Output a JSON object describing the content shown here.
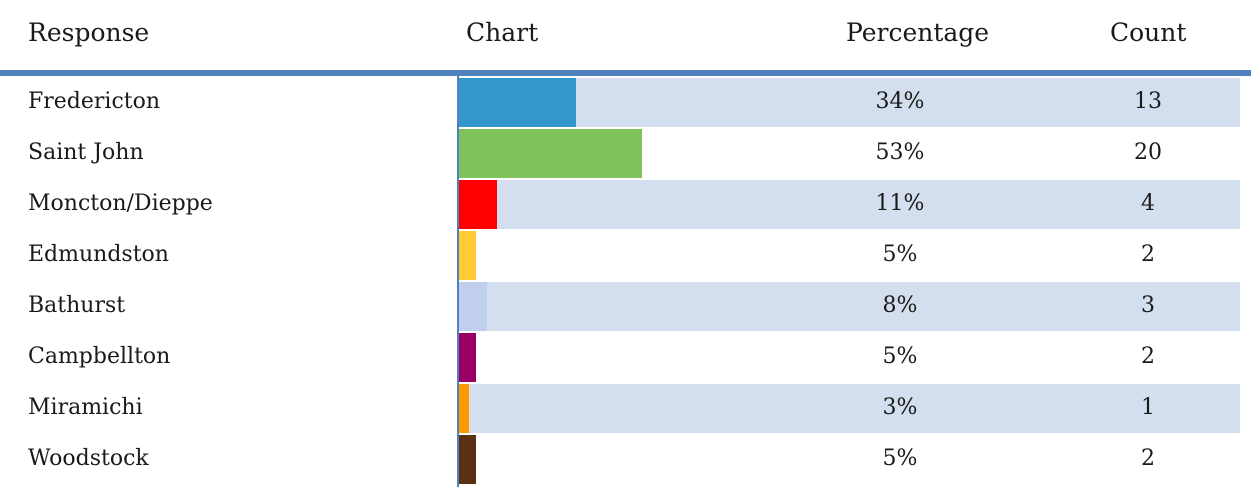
{
  "header": {
    "response": "Response",
    "chart": "Chart",
    "percentage": "Percentage",
    "count": "Count"
  },
  "chart_data": {
    "type": "bar",
    "categories": [
      "Fredericton",
      "Saint John",
      "Moncton/Dieppe",
      "Edmundston",
      "Bathurst",
      "Campbellton",
      "Miramichi",
      "Woodstock"
    ],
    "values": [
      34,
      53,
      11,
      5,
      8,
      5,
      3,
      5
    ],
    "percent_labels": [
      "34%",
      "53%",
      "11%",
      "5%",
      "8%",
      "5%",
      "3%",
      "5%"
    ],
    "counts": [
      "13",
      "20",
      "4",
      "2",
      "3",
      "2",
      "1",
      "2"
    ],
    "colors": [
      "#3399cc",
      "#80c35c",
      "#ff0000",
      "#ffcc33",
      "#bfcfed",
      "#990066",
      "#ff9900",
      "#5a3014"
    ],
    "orientation": "horizontal",
    "striped_rows": [
      true,
      false,
      true,
      false,
      true,
      false,
      true,
      false
    ],
    "band_color": "#d3dfee",
    "accent": "#4f81bd"
  }
}
